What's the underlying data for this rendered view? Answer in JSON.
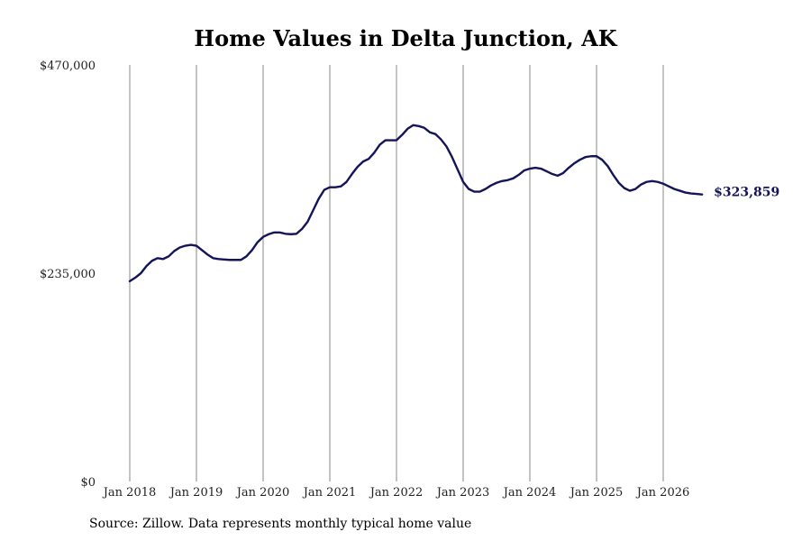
{
  "chart_data": {
    "type": "line",
    "title": "Home Values in Delta Junction, AK",
    "source": "Source: Zillow. Data represents monthly typical home value",
    "ylim": [
      0,
      470000
    ],
    "xlim": [
      "2018-01",
      "2026-08"
    ],
    "y_ticks": [
      {
        "value": 0,
        "label": "$0"
      },
      {
        "value": 235000,
        "label": "$235,000"
      },
      {
        "value": 470000,
        "label": "$470,000"
      }
    ],
    "x_ticks": [
      {
        "date": "2018-01",
        "label": "Jan 2018"
      },
      {
        "date": "2019-01",
        "label": "Jan 2019"
      },
      {
        "date": "2020-01",
        "label": "Jan 2020"
      },
      {
        "date": "2021-01",
        "label": "Jan 2021"
      },
      {
        "date": "2022-01",
        "label": "Jan 2022"
      },
      {
        "date": "2023-01",
        "label": "Jan 2023"
      },
      {
        "date": "2024-01",
        "label": "Jan 2024"
      },
      {
        "date": "2025-01",
        "label": "Jan 2025"
      },
      {
        "date": "2026-01",
        "label": "Jan 2026"
      }
    ],
    "grid": "vertical",
    "line_color": "#14145a",
    "end_label": "$323,859",
    "series": [
      {
        "x": [
          "2018-01",
          "2018-02",
          "2018-03",
          "2018-04",
          "2018-05",
          "2018-06",
          "2018-07",
          "2018-08",
          "2018-09",
          "2018-10",
          "2018-11",
          "2018-12",
          "2019-01",
          "2019-02",
          "2019-03",
          "2019-04",
          "2019-05",
          "2019-06",
          "2019-07",
          "2019-08",
          "2019-09",
          "2019-10",
          "2019-11",
          "2019-12",
          "2020-01",
          "2020-02",
          "2020-03",
          "2020-04",
          "2020-05",
          "2020-06",
          "2020-07",
          "2020-08",
          "2020-09",
          "2020-10",
          "2020-11",
          "2020-12",
          "2021-01",
          "2021-02",
          "2021-03",
          "2021-04",
          "2021-05",
          "2021-06",
          "2021-07",
          "2021-08",
          "2021-09",
          "2021-10",
          "2021-11",
          "2021-12",
          "2022-01",
          "2022-02",
          "2022-03",
          "2022-04",
          "2022-05",
          "2022-06",
          "2022-07",
          "2022-08",
          "2022-09",
          "2022-10",
          "2022-11",
          "2022-12",
          "2023-01",
          "2023-02",
          "2023-03",
          "2023-04",
          "2023-05",
          "2023-06",
          "2023-07",
          "2023-08",
          "2023-09",
          "2023-10",
          "2023-11",
          "2023-12",
          "2024-01",
          "2024-02",
          "2024-03",
          "2024-04",
          "2024-05",
          "2024-06",
          "2024-07",
          "2024-08",
          "2024-09",
          "2024-10",
          "2024-11",
          "2024-12",
          "2025-01",
          "2025-02",
          "2025-03",
          "2025-04",
          "2025-05",
          "2025-06",
          "2025-07",
          "2025-08",
          "2025-09",
          "2025-10",
          "2025-11",
          "2025-12",
          "2026-01",
          "2026-02",
          "2026-03",
          "2026-04",
          "2026-05",
          "2026-06",
          "2026-07",
          "2026-08"
        ],
        "values": [
          226000,
          230000,
          235000,
          243000,
          249000,
          252000,
          251000,
          254000,
          260000,
          264000,
          266000,
          267000,
          266000,
          261000,
          256000,
          252000,
          251000,
          250500,
          250000,
          250000,
          250000,
          254000,
          261000,
          270000,
          276000,
          279000,
          281000,
          281000,
          279500,
          279000,
          279500,
          285000,
          293000,
          306000,
          319000,
          329000,
          332000,
          332000,
          333000,
          338000,
          347000,
          355000,
          361000,
          364000,
          371000,
          380000,
          385000,
          385000,
          385000,
          391000,
          398000,
          402000,
          401000,
          399000,
          394000,
          392000,
          386000,
          378000,
          366000,
          352000,
          338000,
          330000,
          327000,
          327000,
          330000,
          334000,
          337000,
          339000,
          340000,
          342000,
          346000,
          351000,
          353000,
          354000,
          353000,
          350000,
          347000,
          345000,
          348000,
          354000,
          359000,
          363000,
          366000,
          367000,
          367000,
          363000,
          356000,
          346000,
          337000,
          331000,
          328000,
          330000,
          335000,
          338000,
          339000,
          338000,
          336000,
          333000,
          330000,
          328000,
          326000,
          325000,
          324500,
          323859
        ]
      }
    ]
  }
}
